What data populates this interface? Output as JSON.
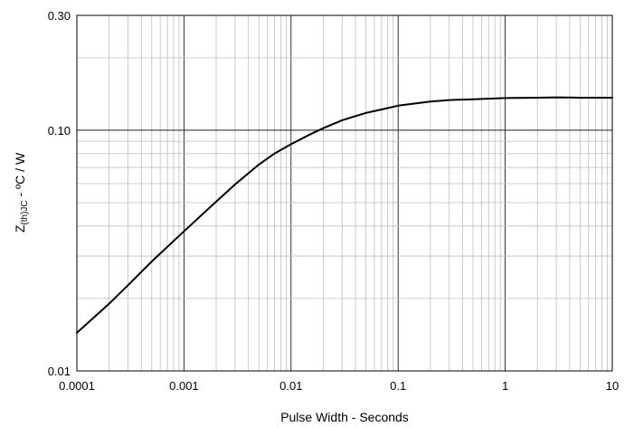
{
  "chart_data": {
    "type": "line",
    "xlabel": "Pulse Width - Seconds",
    "ylabel": {
      "prefix": "Z",
      "subscript": "(th)JC",
      "suffix": " - ºC / W"
    },
    "x_scale": "log",
    "y_scale": "log",
    "xlim": [
      0.0001,
      10
    ],
    "ylim": [
      0.01,
      0.3
    ],
    "grid": true,
    "x_tick_labels": [
      "0.0001",
      "0.001",
      "0.01",
      "0.1",
      "1",
      "10"
    ],
    "y_tick_labels": [
      "0.01",
      "0.10",
      "0.30"
    ],
    "series": [
      {
        "color": "#000000",
        "x": [
          0.0001,
          0.0002,
          0.0003,
          0.0005,
          0.001,
          0.002,
          0.003,
          0.005,
          0.007,
          0.01,
          0.015,
          0.02,
          0.03,
          0.05,
          0.07,
          0.1,
          0.2,
          0.3,
          0.5,
          1,
          2,
          3,
          5,
          10
        ],
        "y": [
          0.0144,
          0.019,
          0.0227,
          0.0285,
          0.038,
          0.0505,
          0.0595,
          0.072,
          0.08,
          0.0875,
          0.096,
          0.102,
          0.11,
          0.118,
          0.122,
          0.1265,
          0.1315,
          0.1335,
          0.1345,
          0.136,
          0.1365,
          0.137,
          0.1365,
          0.1365
        ]
      }
    ]
  }
}
